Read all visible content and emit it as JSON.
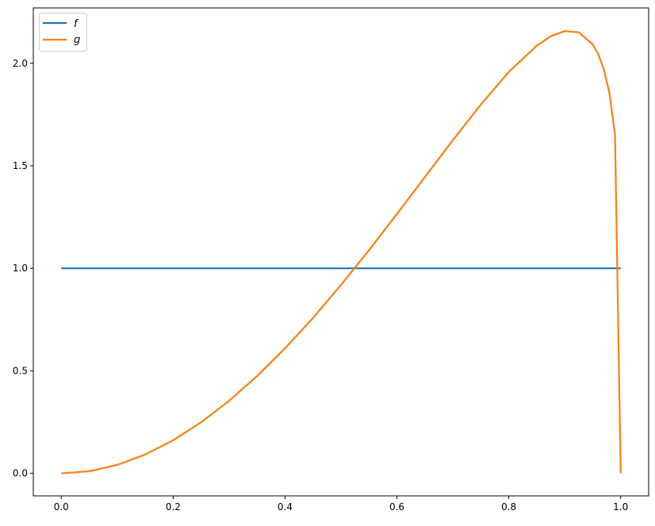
{
  "chart_data": {
    "type": "line",
    "title": "",
    "xlabel": "",
    "ylabel": "",
    "xlim": [
      -0.05,
      1.05
    ],
    "ylim": [
      -0.11,
      2.27
    ],
    "xticks": [
      0.0,
      0.2,
      0.4,
      0.6,
      0.8,
      1.0
    ],
    "xtick_labels": [
      "0.0",
      "0.2",
      "0.4",
      "0.6",
      "0.8",
      "1.0"
    ],
    "yticks": [
      0.0,
      0.5,
      1.0,
      1.5,
      2.0
    ],
    "ytick_labels": [
      "0.0",
      "0.5",
      "1.0",
      "1.5",
      "2.0"
    ],
    "grid": false,
    "legend_position": "top-left",
    "series": [
      {
        "name": "f",
        "color": "#1f77b4",
        "x": [
          0.0,
          1.0
        ],
        "y": [
          1.0,
          1.0
        ]
      },
      {
        "name": "g",
        "color": "#ff7f0e",
        "x": [
          0.0,
          0.05,
          0.1,
          0.15,
          0.2,
          0.25,
          0.3,
          0.35,
          0.4,
          0.45,
          0.5,
          0.55,
          0.6,
          0.65,
          0.7,
          0.75,
          0.8,
          0.85,
          0.875,
          0.9,
          0.925,
          0.95,
          0.9596,
          0.9697,
          0.9798,
          0.9899,
          1.0
        ],
        "y": [
          0.0,
          0.01,
          0.041,
          0.092,
          0.161,
          0.249,
          0.354,
          0.474,
          0.61,
          0.758,
          0.919,
          1.088,
          1.265,
          1.445,
          1.625,
          1.799,
          1.958,
          2.086,
          2.132,
          2.157,
          2.151,
          2.092,
          2.046,
          1.972,
          1.856,
          1.65,
          0.0
        ]
      }
    ]
  }
}
